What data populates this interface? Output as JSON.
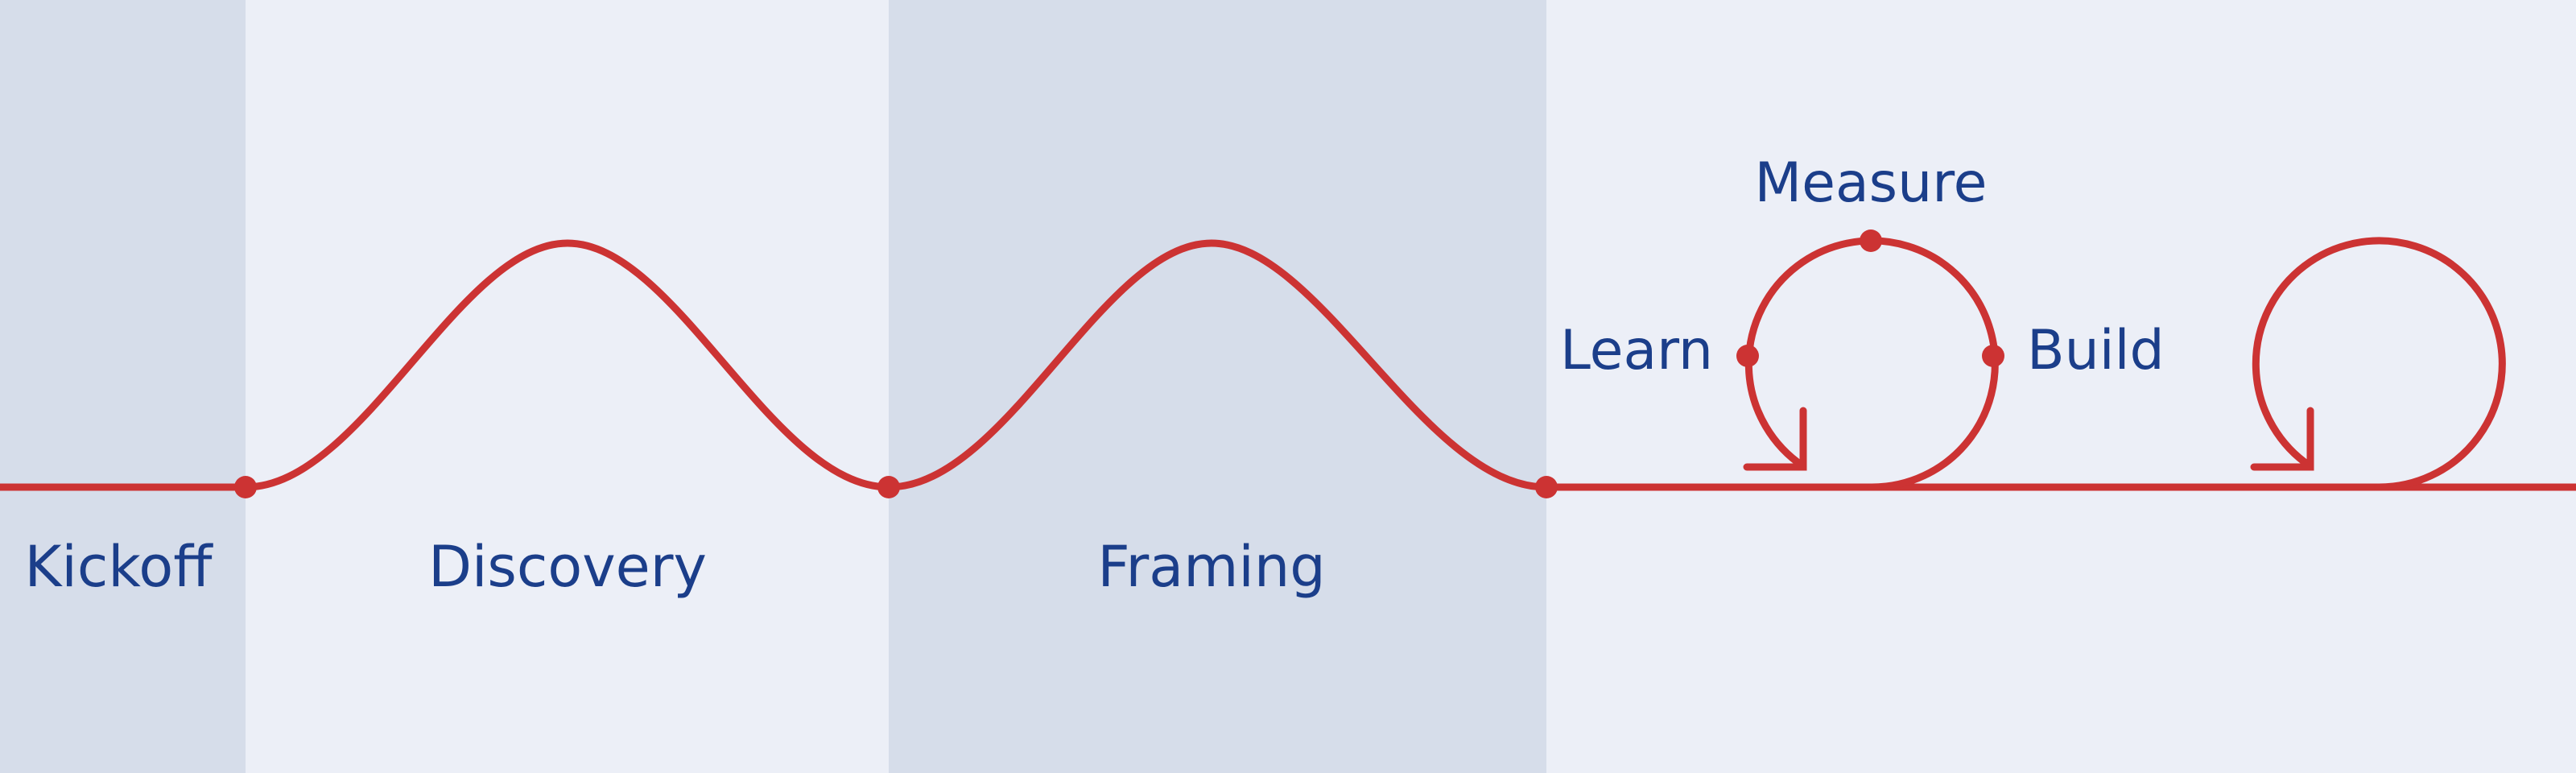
{
  "phases": [
    {
      "label": "Kickoff",
      "tone": "dark"
    },
    {
      "label": "Discovery",
      "tone": "light"
    },
    {
      "label": "Framing",
      "tone": "dark"
    },
    {
      "label": "",
      "tone": "light"
    }
  ],
  "cycle": {
    "labels": {
      "measure": "Measure",
      "learn": "Learn",
      "build": "Build"
    }
  },
  "colors": {
    "band_dark": "#D6DDEA",
    "band_light": "#ECEFF7",
    "line": "#CC3333",
    "text": "#1B3E8A"
  }
}
